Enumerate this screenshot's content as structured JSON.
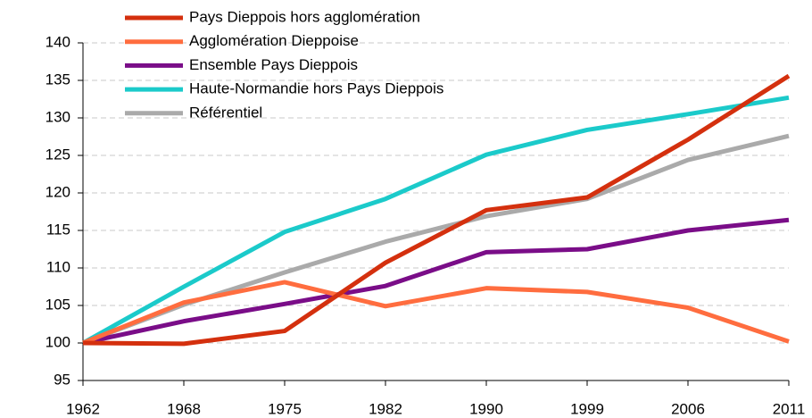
{
  "chart_data": {
    "type": "line",
    "categories": [
      "1962",
      "1968",
      "1975",
      "1982",
      "1990",
      "1999",
      "2006",
      "2011"
    ],
    "series": [
      {
        "name": "Pays Dieppois hors agglomération",
        "color": "#d4300e",
        "values": [
          100,
          99.9,
          101.6,
          110.7,
          117.7,
          119.4,
          127.1,
          135.6
        ]
      },
      {
        "name": "Agglomération Dieppoise",
        "color": "#ff6d3f",
        "values": [
          100,
          105.4,
          108.1,
          104.9,
          107.3,
          106.8,
          104.7,
          100.2
        ]
      },
      {
        "name": "Ensemble Pays Dieppois",
        "color": "#7a0d88",
        "values": [
          100,
          102.9,
          105.2,
          107.6,
          112.1,
          112.5,
          115.0,
          116.4
        ]
      },
      {
        "name": "Haute-Normandie hors Pays Dieppois",
        "color": "#1bcaca",
        "values": [
          100,
          107.5,
          114.8,
          119.2,
          125.1,
          128.4,
          130.5,
          132.7
        ]
      },
      {
        "name": "Référentiel",
        "color": "#aaaaaa",
        "values": [
          100,
          105.1,
          109.4,
          113.5,
          116.9,
          119.2,
          124.4,
          127.6
        ]
      }
    ],
    "ylim": [
      95,
      140
    ],
    "yticks": [
      95,
      100,
      105,
      110,
      115,
      120,
      125,
      130,
      135,
      140
    ],
    "grid": true,
    "legend": "upper left"
  }
}
